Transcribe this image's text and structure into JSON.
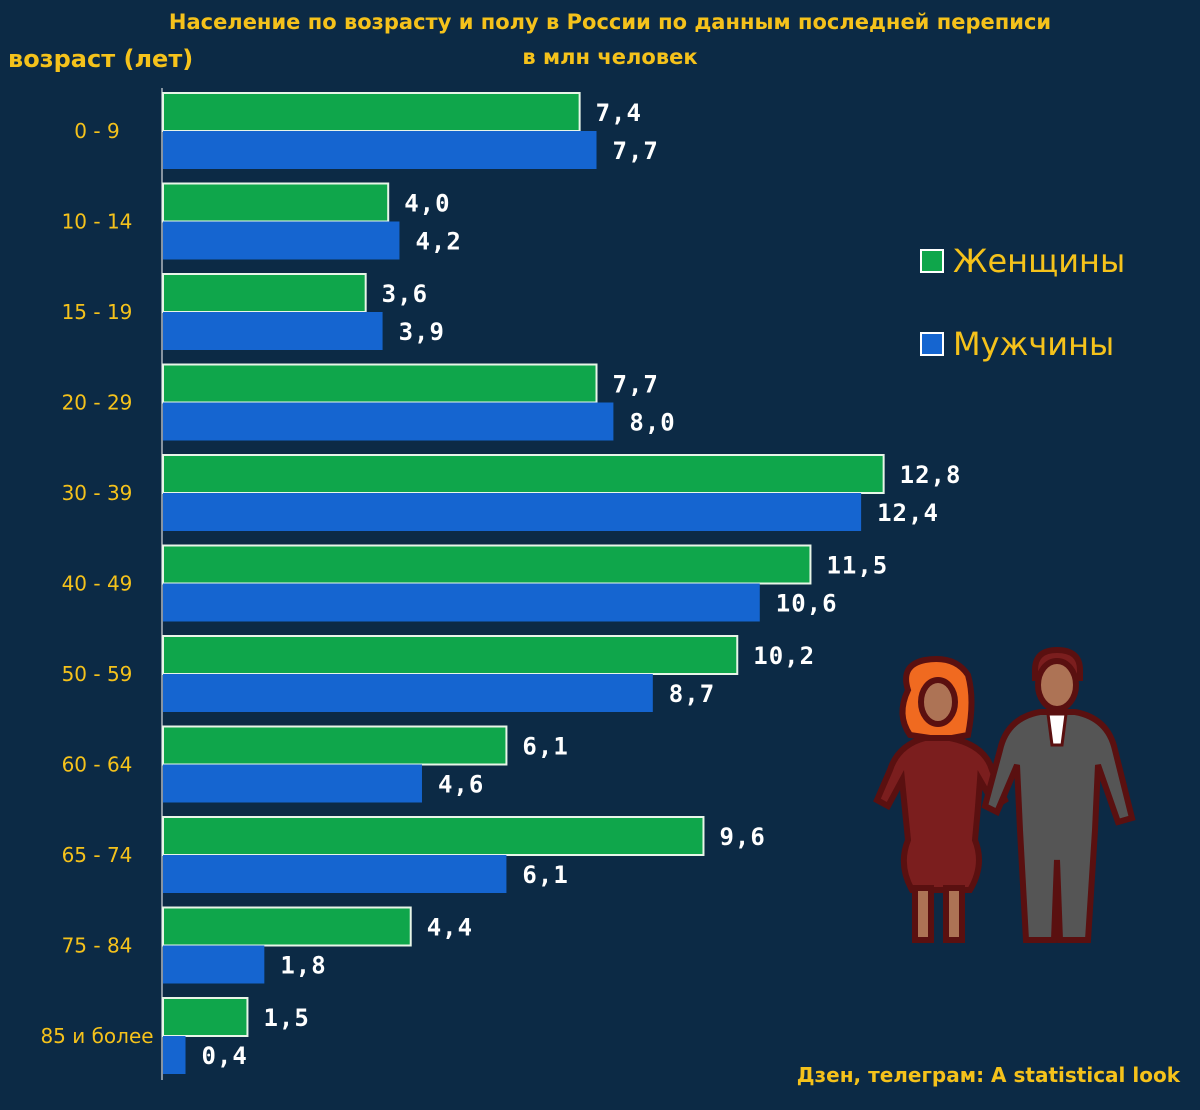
{
  "chart_data": {
    "type": "bar",
    "orientation": "horizontal",
    "title": "Население по возрасту и полу в России по данным последней переписи",
    "subtitle": "в млн человек",
    "ylabel": "возраст (лет)",
    "categories": [
      "0 - 9",
      "10 - 14",
      "15 - 19",
      "20 - 29",
      "30 - 39",
      "40 - 49",
      "50 - 59",
      "60 - 64",
      "65 - 74",
      "75 - 84",
      "85 и более"
    ],
    "series": [
      {
        "name": "Женщины",
        "color": "#0fa64b",
        "values": [
          7.4,
          4.0,
          3.6,
          7.7,
          12.8,
          11.5,
          10.2,
          6.1,
          9.6,
          4.4,
          1.5
        ],
        "labels": [
          "7,4",
          "4,0",
          "3,6",
          "7,7",
          "12,8",
          "11,5",
          "10,2",
          "6,1",
          "9,6",
          "4,4",
          "1,5"
        ]
      },
      {
        "name": "Мужчины",
        "color": "#1565d0",
        "values": [
          7.7,
          4.2,
          3.9,
          8.0,
          12.4,
          10.6,
          8.7,
          4.6,
          6.1,
          1.8,
          0.4
        ],
        "labels": [
          "7,7",
          "4,2",
          "3,9",
          "8,0",
          "12,4",
          "10,6",
          "8,7",
          "4,6",
          "6,1",
          "1,8",
          "0,4"
        ]
      }
    ],
    "legend_position": "right",
    "grid": false,
    "credit": "Дзен, телеграм: A statistical look"
  },
  "illustration": {
    "icon": "couple-icon"
  }
}
